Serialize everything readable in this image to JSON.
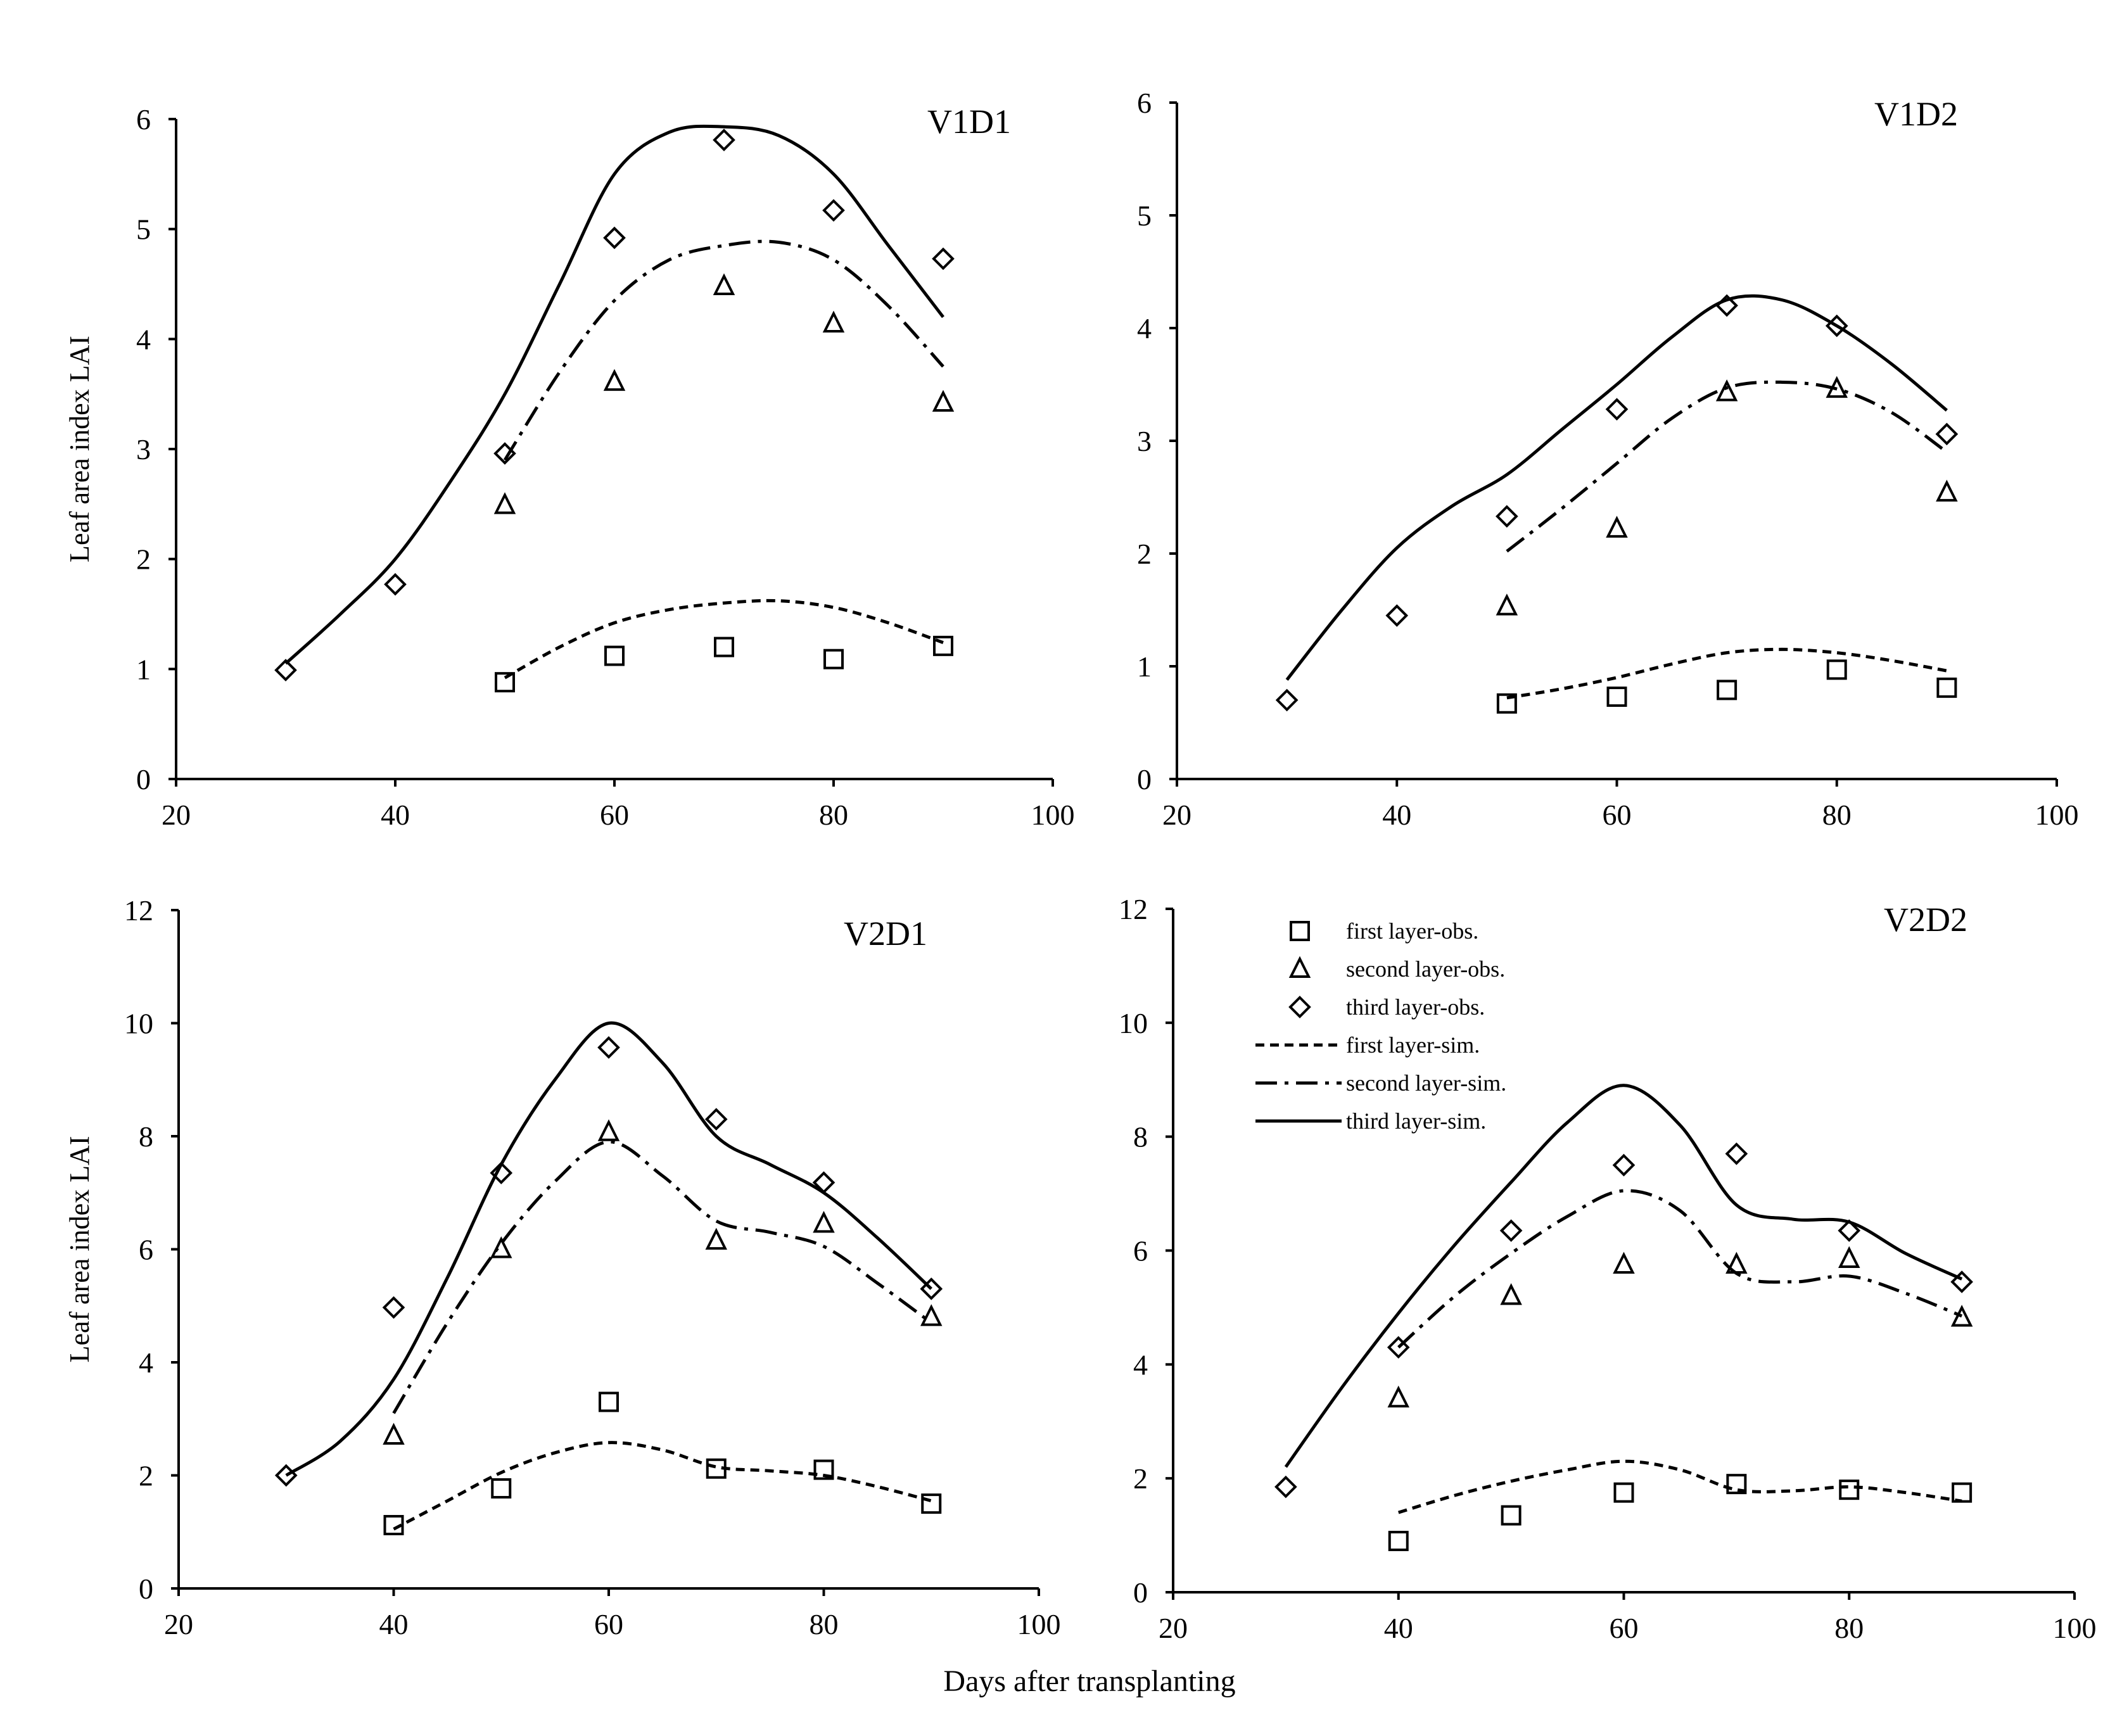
{
  "figure": {
    "x_axis_title": "Days after transplanting"
  },
  "legend": [
    {
      "label": "first layer-obs.",
      "kind": "obs",
      "marker": "square"
    },
    {
      "label": "second layer-obs.",
      "kind": "obs",
      "marker": "triangle"
    },
    {
      "label": "third layer-obs.",
      "kind": "obs",
      "marker": "diamond"
    },
    {
      "label": "first layer-sim.",
      "kind": "sim",
      "dash": "short"
    },
    {
      "label": "second layer-sim.",
      "kind": "sim",
      "dash": "dashdot"
    },
    {
      "label": "third layer-sim.",
      "kind": "sim",
      "dash": "solid"
    }
  ],
  "chart_data": [
    {
      "type": "scatter",
      "title": "V1D1",
      "xlabel": "",
      "ylabel": "Leaf area index  LAI",
      "xlim": [
        20,
        100
      ],
      "ylim": [
        0,
        6
      ],
      "xticks": [
        "20",
        "40",
        "60",
        "80",
        "100"
      ],
      "yticks": [
        "0",
        "1",
        "2",
        "3",
        "4",
        "5",
        "6"
      ],
      "series": [
        {
          "name": "first layer-obs.",
          "marker": "square",
          "x": [
            50,
            60,
            70,
            80,
            90
          ],
          "values": [
            0.88,
            1.12,
            1.2,
            1.09,
            1.21
          ]
        },
        {
          "name": "second layer-obs.",
          "marker": "triangle",
          "x": [
            50,
            60,
            70,
            80,
            90
          ],
          "values": [
            2.49,
            3.61,
            4.48,
            4.14,
            3.42
          ]
        },
        {
          "name": "third layer-obs.",
          "marker": "diamond",
          "x": [
            30,
            40,
            50,
            60,
            70,
            80,
            90
          ],
          "values": [
            0.99,
            1.77,
            2.96,
            4.92,
            5.81,
            5.17,
            4.73
          ]
        },
        {
          "name": "first layer-sim.",
          "line": "short",
          "x": [
            50,
            55,
            60,
            65,
            70,
            75,
            80,
            85,
            90
          ],
          "values": [
            0.92,
            1.2,
            1.42,
            1.54,
            1.6,
            1.62,
            1.56,
            1.42,
            1.24
          ]
        },
        {
          "name": "second layer-sim.",
          "line": "dashdot",
          "x": [
            50,
            55,
            60,
            65,
            70,
            75,
            80,
            85,
            90
          ],
          "values": [
            2.9,
            3.7,
            4.35,
            4.72,
            4.85,
            4.88,
            4.72,
            4.3,
            3.75
          ]
        },
        {
          "name": "third layer-sim.",
          "line": "solid",
          "x": [
            30,
            35,
            40,
            45,
            50,
            55,
            60,
            65,
            70,
            75,
            80,
            85,
            90
          ],
          "values": [
            1.05,
            1.5,
            2.0,
            2.7,
            3.5,
            4.5,
            5.5,
            5.88,
            5.93,
            5.85,
            5.5,
            4.85,
            4.2
          ]
        }
      ]
    },
    {
      "type": "scatter",
      "title": "V1D2",
      "xlabel": "",
      "ylabel": "",
      "xlim": [
        20,
        100
      ],
      "ylim": [
        0,
        6
      ],
      "xticks": [
        "20",
        "40",
        "60",
        "80",
        "100"
      ],
      "yticks": [
        "0",
        "1",
        "2",
        "3",
        "4",
        "5",
        "6"
      ],
      "series": [
        {
          "name": "first layer-obs.",
          "marker": "square",
          "x": [
            50,
            60,
            70,
            80,
            90
          ],
          "values": [
            0.67,
            0.73,
            0.79,
            0.97,
            0.81
          ]
        },
        {
          "name": "second layer-obs.",
          "marker": "triangle",
          "x": [
            50,
            60,
            70,
            80,
            90
          ],
          "values": [
            1.53,
            2.22,
            3.43,
            3.46,
            2.54
          ]
        },
        {
          "name": "third layer-obs.",
          "marker": "diamond",
          "x": [
            30,
            40,
            50,
            60,
            70,
            80,
            90
          ],
          "values": [
            0.7,
            1.45,
            2.33,
            3.28,
            4.2,
            4.02,
            3.06
          ]
        },
        {
          "name": "first layer-sim.",
          "line": "short",
          "x": [
            50,
            55,
            60,
            65,
            70,
            75,
            80,
            85,
            90
          ],
          "values": [
            0.72,
            0.8,
            0.9,
            1.02,
            1.12,
            1.15,
            1.12,
            1.05,
            0.96
          ]
        },
        {
          "name": "second layer-sim.",
          "line": "dashdot",
          "x": [
            50,
            55,
            60,
            65,
            70,
            75,
            80,
            85,
            90
          ],
          "values": [
            2.02,
            2.4,
            2.8,
            3.2,
            3.47,
            3.52,
            3.46,
            3.25,
            2.9
          ]
        },
        {
          "name": "third layer-sim.",
          "line": "solid",
          "x": [
            30,
            35,
            40,
            45,
            50,
            55,
            60,
            65,
            70,
            75,
            80,
            85,
            90
          ],
          "values": [
            0.88,
            1.5,
            2.05,
            2.42,
            2.7,
            3.1,
            3.5,
            3.92,
            4.25,
            4.25,
            4.02,
            3.68,
            3.27
          ]
        }
      ]
    },
    {
      "type": "scatter",
      "title": "V2D1",
      "xlabel": "",
      "ylabel": "Leaf area index LAI",
      "xlim": [
        20,
        100
      ],
      "ylim": [
        0,
        12
      ],
      "xticks": [
        "20",
        "40",
        "60",
        "80",
        "100"
      ],
      "yticks": [
        "0",
        "2",
        "4",
        "6",
        "8",
        "10",
        "12"
      ],
      "series": [
        {
          "name": "first layer-obs.",
          "marker": "square",
          "x": [
            40,
            50,
            60,
            70,
            80,
            90
          ],
          "values": [
            1.12,
            1.77,
            3.3,
            2.12,
            2.1,
            1.5
          ]
        },
        {
          "name": "second layer-obs.",
          "marker": "triangle",
          "x": [
            40,
            50,
            60,
            70,
            80,
            90
          ],
          "values": [
            2.7,
            6.0,
            8.07,
            6.15,
            6.45,
            4.8
          ]
        },
        {
          "name": "third layer-obs.",
          "marker": "diamond",
          "x": [
            30,
            40,
            50,
            60,
            70,
            80,
            90
          ],
          "values": [
            2.0,
            4.97,
            7.35,
            9.57,
            8.3,
            7.18,
            5.3
          ]
        },
        {
          "name": "first layer-sim.",
          "line": "short",
          "x": [
            40,
            45,
            50,
            55,
            60,
            65,
            70,
            75,
            80,
            85,
            90
          ],
          "values": [
            1.05,
            1.55,
            2.05,
            2.4,
            2.58,
            2.45,
            2.15,
            2.08,
            2.0,
            1.8,
            1.55
          ]
        },
        {
          "name": "second layer-sim.",
          "line": "dashdot",
          "x": [
            40,
            45,
            50,
            55,
            60,
            65,
            70,
            75,
            80,
            85,
            90
          ],
          "values": [
            3.1,
            4.7,
            6.1,
            7.2,
            7.9,
            7.3,
            6.5,
            6.3,
            6.05,
            5.4,
            4.7
          ]
        },
        {
          "name": "third layer-sim.",
          "line": "solid",
          "x": [
            30,
            35,
            40,
            45,
            50,
            55,
            60,
            65,
            70,
            75,
            80,
            85,
            90
          ],
          "values": [
            2.0,
            2.6,
            3.7,
            5.5,
            7.5,
            9.0,
            10.0,
            9.3,
            8.0,
            7.5,
            7.0,
            6.2,
            5.3
          ]
        }
      ]
    },
    {
      "type": "scatter",
      "title": "V2D2",
      "xlabel": "",
      "ylabel": "",
      "xlim": [
        20,
        100
      ],
      "ylim": [
        0,
        12
      ],
      "xticks": [
        "20",
        "40",
        "60",
        "80",
        "100"
      ],
      "yticks": [
        "0",
        "2",
        "4",
        "6",
        "8",
        "10",
        "12"
      ],
      "series": [
        {
          "name": "first layer-obs.",
          "marker": "square",
          "x": [
            40,
            50,
            60,
            70,
            80,
            90
          ],
          "values": [
            0.9,
            1.35,
            1.75,
            1.9,
            1.8,
            1.75
          ]
        },
        {
          "name": "second layer-obs.",
          "marker": "triangle",
          "x": [
            40,
            50,
            60,
            70,
            80,
            90
          ],
          "values": [
            3.4,
            5.2,
            5.75,
            5.75,
            5.85,
            4.82
          ]
        },
        {
          "name": "third layer-obs.",
          "marker": "diamond",
          "x": [
            30,
            40,
            50,
            60,
            70,
            80,
            90
          ],
          "values": [
            1.85,
            4.3,
            6.35,
            7.5,
            7.7,
            6.35,
            5.45
          ]
        },
        {
          "name": "first layer-sim.",
          "line": "short",
          "x": [
            40,
            45,
            50,
            55,
            60,
            65,
            70,
            75,
            80,
            85,
            90
          ],
          "values": [
            1.4,
            1.7,
            1.95,
            2.15,
            2.3,
            2.15,
            1.8,
            1.78,
            1.85,
            1.75,
            1.6
          ]
        },
        {
          "name": "second layer-sim.",
          "line": "dashdot",
          "x": [
            40,
            45,
            50,
            55,
            60,
            65,
            70,
            75,
            80,
            85,
            90
          ],
          "values": [
            4.3,
            5.2,
            5.95,
            6.6,
            7.05,
            6.7,
            5.6,
            5.45,
            5.55,
            5.25,
            4.85
          ]
        },
        {
          "name": "third layer-sim.",
          "line": "solid",
          "x": [
            30,
            35,
            40,
            45,
            50,
            55,
            60,
            65,
            70,
            75,
            80,
            85,
            90
          ],
          "values": [
            2.2,
            3.6,
            4.9,
            6.1,
            7.2,
            8.25,
            8.9,
            8.2,
            6.8,
            6.55,
            6.5,
            5.95,
            5.5
          ]
        }
      ]
    }
  ]
}
